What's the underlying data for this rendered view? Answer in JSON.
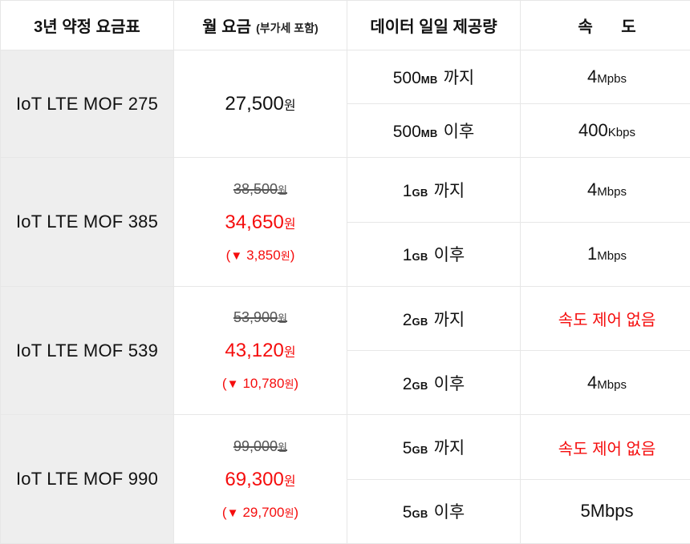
{
  "header": {
    "plan_col": "3년 약정 요금표",
    "fee_col": "월 요금",
    "fee_note": "(부가세 포함)",
    "data_col": "데이터 일일 제공량",
    "speed_col": "속 도"
  },
  "colors": {
    "accent_red": "#f50d0d",
    "row_label_bg": "#eeeeee",
    "grid_line": "#e7e7e7",
    "strike_gray": "#555555"
  },
  "plans": [
    {
      "name": "IoT LTE MOF 275",
      "price": {
        "current": "27,500",
        "currency": "원"
      },
      "tiers": [
        {
          "quota_value": "500",
          "quota_unit": "MB",
          "quota_label": "까지",
          "speed_value": "4",
          "speed_unit": "Mpbs"
        },
        {
          "quota_value": "500",
          "quota_unit": "MB",
          "quota_label": "이후",
          "speed_value": "400",
          "speed_unit": "Kbps"
        }
      ]
    },
    {
      "name": "IoT LTE MOF 385",
      "price": {
        "original": "38,500",
        "original_currency": "원",
        "current": "34,650",
        "currency": "원",
        "discount_open": "(",
        "discount_arrow": "▼",
        "discount_amount": "3,850",
        "discount_currency": "원",
        "discount_close": ")"
      },
      "tiers": [
        {
          "quota_value": "1",
          "quota_unit": "GB",
          "quota_label": "까지",
          "speed_value": "4",
          "speed_unit": "Mbps"
        },
        {
          "quota_value": "1",
          "quota_unit": "GB",
          "quota_label": "이후",
          "speed_value": "1",
          "speed_unit": "Mbps"
        }
      ]
    },
    {
      "name": "IoT LTE MOF 539",
      "price": {
        "original": "53,900",
        "original_currency": "원",
        "current": "43,120",
        "currency": "원",
        "discount_open": "(",
        "discount_arrow": "▼",
        "discount_amount": "10,780",
        "discount_currency": "원",
        "discount_close": ")"
      },
      "tiers": [
        {
          "quota_value": "2",
          "quota_unit": "GB",
          "quota_label": "까지",
          "speed_text": "속도 제어 없음"
        },
        {
          "quota_value": "2",
          "quota_unit": "GB",
          "quota_label": "이후",
          "speed_value": "4",
          "speed_unit": "Mbps"
        }
      ]
    },
    {
      "name": "IoT LTE MOF 990",
      "price": {
        "original": "99,000",
        "original_currency": "원",
        "current": "69,300",
        "currency": "원",
        "discount_open": "(",
        "discount_arrow": "▼",
        "discount_amount": "29,700",
        "discount_currency": "원",
        "discount_close": ")"
      },
      "tiers": [
        {
          "quota_value": "5",
          "quota_unit": "GB",
          "quota_label": "까지",
          "speed_text": "속도 제어 없음"
        },
        {
          "quota_value": "5",
          "quota_unit": "GB",
          "quota_label": "이후",
          "speed_value": "5",
          "speed_unit": "Mbps"
        }
      ]
    }
  ]
}
